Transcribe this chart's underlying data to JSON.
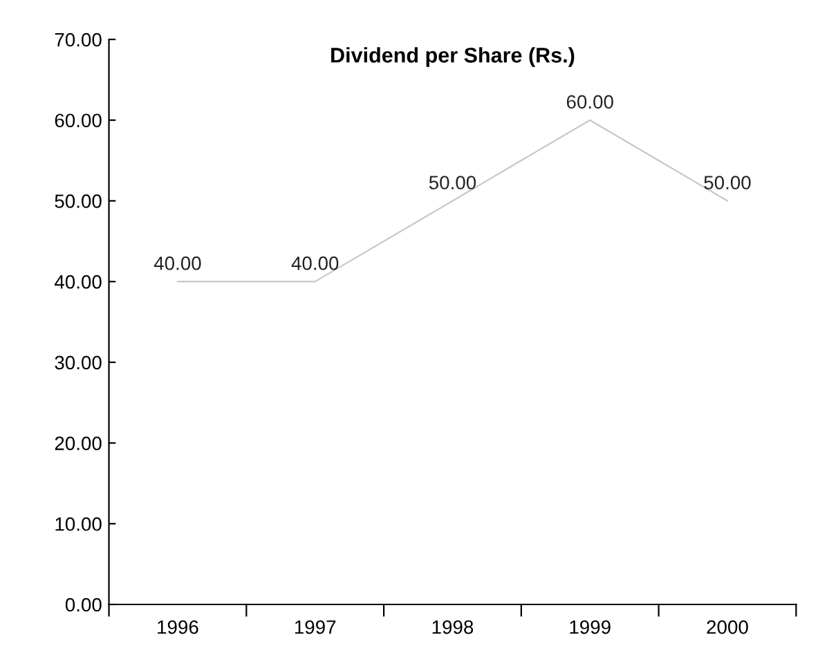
{
  "chart_data": {
    "type": "line",
    "title": "Dividend per Share (Rs.)",
    "categories": [
      "1996",
      "1997",
      "1998",
      "1999",
      "2000"
    ],
    "values": [
      40,
      40,
      50,
      60,
      50
    ],
    "value_labels": [
      "40.00",
      "40.00",
      "50.00",
      "60.00",
      "50.00"
    ],
    "color": "#c8c8c8",
    "line_style": "solid",
    "ylim": [
      0,
      70
    ],
    "yticks": [
      {
        "value": 0,
        "label": "0.00"
      },
      {
        "value": 10,
        "label": "10.00"
      },
      {
        "value": 20,
        "label": "20.00"
      },
      {
        "value": 30,
        "label": "30.00"
      },
      {
        "value": 40,
        "label": "40.00"
      },
      {
        "value": 50,
        "label": "50.00"
      },
      {
        "value": 60,
        "label": "60.00"
      },
      {
        "value": 70,
        "label": "70.00"
      }
    ],
    "grid": false,
    "legend": false
  }
}
